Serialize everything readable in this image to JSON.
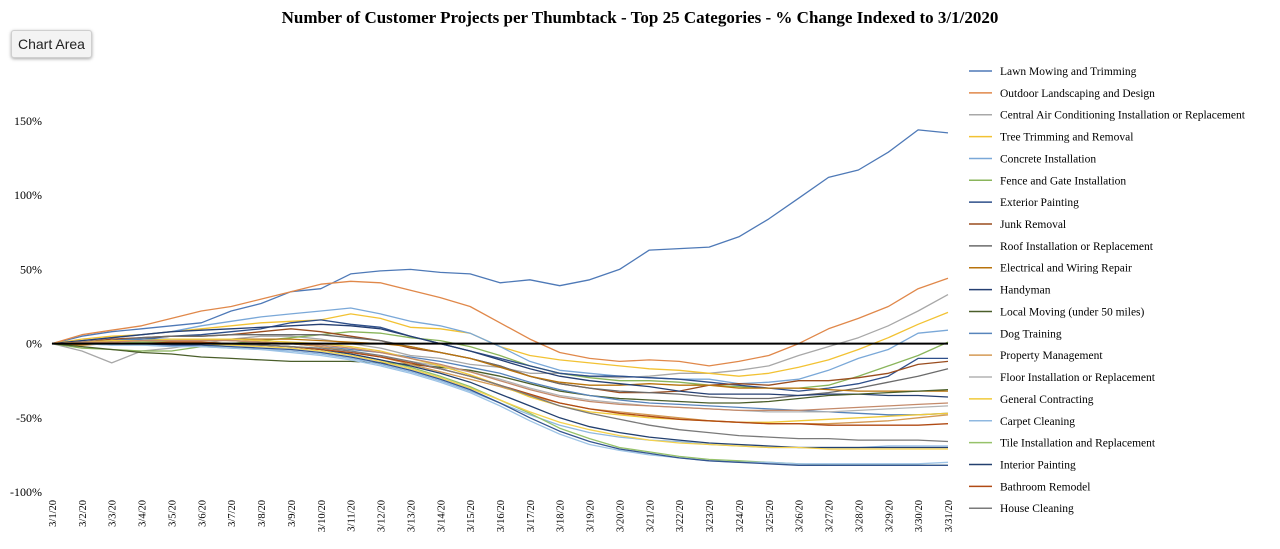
{
  "ui": {
    "chart_area_label": "Chart Area"
  },
  "chart_data": {
    "type": "line",
    "title": "Number of Customer Projects per Thumbtack - Top 25 Categories - % Change Indexed to 3/1/2020",
    "xlabel": "",
    "ylabel": "",
    "ylim": [
      -100,
      150
    ],
    "y_ticks": [
      "150%",
      "100%",
      "50%",
      "0%",
      "-50%",
      "-100%"
    ],
    "y_tick_values": [
      150,
      100,
      50,
      0,
      -50,
      -100
    ],
    "grid": false,
    "baseline_at_zero": true,
    "legend_position": "right",
    "categories": [
      "3/1/20",
      "3/2/20",
      "3/3/20",
      "3/4/20",
      "3/5/20",
      "3/6/20",
      "3/7/20",
      "3/8/20",
      "3/9/20",
      "3/10/20",
      "3/11/20",
      "3/12/20",
      "3/13/20",
      "3/14/20",
      "3/15/20",
      "3/16/20",
      "3/17/20",
      "3/18/20",
      "3/19/20",
      "3/20/20",
      "3/21/20",
      "3/22/20",
      "3/23/20",
      "3/24/20",
      "3/25/20",
      "3/26/20",
      "3/27/20",
      "3/28/20",
      "3/29/20",
      "3/30/20",
      "3/31/20"
    ],
    "series": [
      {
        "name": "Lawn Mowing and Trimming",
        "color": "#4e79b7",
        "values": [
          0,
          5,
          8,
          10,
          12,
          14,
          22,
          27,
          35,
          37,
          47,
          49,
          50,
          48,
          47,
          41,
          43,
          39,
          43,
          50,
          63,
          64,
          65,
          72,
          84,
          98,
          112,
          117,
          129,
          144,
          142
        ]
      },
      {
        "name": "Outdoor Landscaping and Design",
        "color": "#e0884a",
        "values": [
          0,
          6,
          9,
          12,
          17,
          22,
          25,
          30,
          35,
          40,
          42,
          41,
          36,
          31,
          25,
          14,
          3,
          -6,
          -10,
          -12,
          -11,
          -12,
          -15,
          -12,
          -8,
          0,
          10,
          17,
          25,
          37,
          44
        ]
      },
      {
        "name": "Central Air Conditioning Installation or Replacement",
        "color": "#a8a8a8",
        "values": [
          0,
          -5,
          -13,
          -5,
          -3,
          0,
          3,
          5,
          5,
          3,
          0,
          -3,
          -8,
          -10,
          -14,
          -16,
          -20,
          -20,
          -22,
          -23,
          -22,
          -20,
          -20,
          -18,
          -15,
          -8,
          -2,
          4,
          12,
          22,
          33
        ]
      },
      {
        "name": "Tree Trimming and Removal",
        "color": "#f2c233",
        "values": [
          0,
          3,
          5,
          6,
          8,
          10,
          12,
          14,
          15,
          16,
          20,
          17,
          11,
          10,
          7,
          -2,
          -8,
          -11,
          -13,
          -15,
          -17,
          -18,
          -20,
          -22,
          -20,
          -16,
          -11,
          -4,
          4,
          13,
          21
        ]
      },
      {
        "name": "Concrete Installation",
        "color": "#7aa8d8",
        "values": [
          0,
          2,
          4,
          6,
          8,
          12,
          15,
          18,
          20,
          22,
          24,
          20,
          15,
          12,
          7,
          -2,
          -12,
          -18,
          -20,
          -22,
          -23,
          -24,
          -24,
          -27,
          -26,
          -24,
          -18,
          -10,
          -4,
          7,
          9
        ]
      },
      {
        "name": "Fence and Gate Installation",
        "color": "#8ab55b",
        "values": [
          0,
          -3,
          -4,
          -5,
          -5,
          -2,
          0,
          2,
          4,
          6,
          8,
          7,
          4,
          2,
          -2,
          -8,
          -15,
          -20,
          -23,
          -25,
          -25,
          -26,
          -28,
          -29,
          -30,
          -30,
          -28,
          -22,
          -15,
          -8,
          1
        ]
      },
      {
        "name": "Exterior Painting",
        "color": "#2e4f8a",
        "values": [
          0,
          1,
          2,
          3,
          5,
          6,
          8,
          10,
          14,
          16,
          13,
          11,
          5,
          0,
          -5,
          -10,
          -15,
          -20,
          -22,
          -22,
          -23,
          -24,
          -26,
          -28,
          -30,
          -32,
          -30,
          -27,
          -22,
          -10,
          -10
        ]
      },
      {
        "name": "Junk Removal",
        "color": "#9a4d1f",
        "values": [
          0,
          1,
          3,
          4,
          5,
          5,
          6,
          8,
          10,
          8,
          5,
          2,
          -3,
          -6,
          -10,
          -15,
          -22,
          -27,
          -30,
          -33,
          -33,
          -32,
          -28,
          -27,
          -28,
          -25,
          -25,
          -23,
          -20,
          -14,
          -12
        ]
      },
      {
        "name": "Roof Installation or Replacement",
        "color": "#6b6b6b",
        "values": [
          0,
          1,
          2,
          4,
          5,
          5,
          6,
          6,
          6,
          6,
          4,
          2,
          -2,
          -6,
          -10,
          -15,
          -22,
          -27,
          -30,
          -32,
          -33,
          -34,
          -36,
          -37,
          -37,
          -35,
          -33,
          -30,
          -26,
          -22,
          -17
        ]
      },
      {
        "name": "Electrical and Wiring Repair",
        "color": "#b8730c",
        "values": [
          0,
          -1,
          0,
          1,
          2,
          2,
          3,
          3,
          3,
          2,
          1,
          0,
          -2,
          -6,
          -10,
          -16,
          -22,
          -26,
          -28,
          -28,
          -27,
          -28,
          -28,
          -30,
          -30,
          -30,
          -31,
          -32,
          -32,
          -32,
          -32
        ]
      },
      {
        "name": "Handyman",
        "color": "#253f72",
        "values": [
          0,
          2,
          4,
          6,
          8,
          9,
          10,
          11,
          12,
          13,
          12,
          10,
          5,
          0,
          -5,
          -11,
          -17,
          -22,
          -25,
          -27,
          -29,
          -32,
          -34,
          -34,
          -34,
          -35,
          -34,
          -34,
          -35,
          -35,
          -36
        ]
      },
      {
        "name": "Local Moving (under 50 miles)",
        "color": "#4a5e2a",
        "values": [
          0,
          -2,
          -4,
          -6,
          -7,
          -9,
          -10,
          -11,
          -12,
          -12,
          -12,
          -13,
          -14,
          -16,
          -18,
          -22,
          -27,
          -32,
          -35,
          -37,
          -38,
          -39,
          -40,
          -40,
          -39,
          -37,
          -35,
          -34,
          -33,
          -32,
          -31
        ]
      },
      {
        "name": "Dog Training",
        "color": "#5784bb",
        "values": [
          0,
          1,
          2,
          3,
          3,
          3,
          2,
          1,
          0,
          -2,
          -4,
          -6,
          -9,
          -12,
          -16,
          -20,
          -26,
          -31,
          -35,
          -38,
          -40,
          -41,
          -42,
          -43,
          -44,
          -45,
          -46,
          -47,
          -48,
          -48,
          -47
        ]
      },
      {
        "name": "Property Management",
        "color": "#d49a54",
        "values": [
          0,
          0,
          1,
          2,
          2,
          3,
          2,
          1,
          0,
          -2,
          -5,
          -9,
          -14,
          -19,
          -24,
          -29,
          -35,
          -40,
          -44,
          -46,
          -48,
          -50,
          -52,
          -53,
          -54,
          -54,
          -54,
          -53,
          -52,
          -50,
          -48
        ]
      },
      {
        "name": "Floor Installation or Replacement",
        "color": "#b3b3b3",
        "values": [
          0,
          0,
          0,
          1,
          1,
          1,
          0,
          -1,
          -2,
          -4,
          -6,
          -9,
          -12,
          -15,
          -19,
          -24,
          -30,
          -35,
          -38,
          -40,
          -42,
          -43,
          -44,
          -45,
          -46,
          -46,
          -46,
          -45,
          -44,
          -43,
          -42
        ]
      },
      {
        "name": "General Contracting",
        "color": "#f0c93a",
        "values": [
          0,
          1,
          2,
          2,
          3,
          3,
          3,
          2,
          1,
          0,
          -2,
          -5,
          -10,
          -15,
          -21,
          -28,
          -36,
          -42,
          -46,
          -48,
          -50,
          -51,
          -52,
          -53,
          -53,
          -52,
          -51,
          -50,
          -49,
          -48,
          -47
        ]
      },
      {
        "name": "Carpet Cleaning",
        "color": "#8fb8e0",
        "values": [
          0,
          0,
          -1,
          -1,
          -2,
          -2,
          -3,
          -4,
          -5,
          -7,
          -10,
          -14,
          -19,
          -25,
          -32,
          -40,
          -48,
          -55,
          -60,
          -63,
          -65,
          -66,
          -68,
          -69,
          -70,
          -70,
          -70,
          -70,
          -69,
          -69,
          -69
        ]
      },
      {
        "name": "Tile Installation and Replacement",
        "color": "#96c26a",
        "values": [
          0,
          0,
          0,
          1,
          1,
          1,
          0,
          -1,
          -2,
          -4,
          -7,
          -11,
          -16,
          -22,
          -29,
          -38,
          -47,
          -57,
          -64,
          -70,
          -73,
          -76,
          -78,
          -79,
          -80,
          -81,
          -82,
          -82,
          -82,
          -82,
          -82
        ]
      },
      {
        "name": "Interior Painting",
        "color": "#23406f",
        "values": [
          0,
          0,
          0,
          0,
          0,
          0,
          0,
          -1,
          -2,
          -4,
          -7,
          -11,
          -15,
          -20,
          -26,
          -34,
          -42,
          -50,
          -56,
          -60,
          -63,
          -65,
          -67,
          -68,
          -69,
          -70,
          -70,
          -70,
          -70,
          -70,
          -70
        ]
      },
      {
        "name": "Bathroom Remodel",
        "color": "#b04a14",
        "values": [
          0,
          0,
          0,
          0,
          1,
          1,
          0,
          -1,
          -2,
          -4,
          -6,
          -9,
          -13,
          -17,
          -22,
          -28,
          -34,
          -40,
          -44,
          -47,
          -49,
          -51,
          -52,
          -53,
          -54,
          -54,
          -55,
          -55,
          -55,
          -55,
          -54
        ]
      },
      {
        "name": "House Cleaning",
        "color": "#7a7a7a",
        "values": [
          0,
          0,
          0,
          0,
          0,
          0,
          -1,
          -1,
          -2,
          -3,
          -5,
          -8,
          -12,
          -17,
          -22,
          -28,
          -35,
          -42,
          -47,
          -51,
          -55,
          -58,
          -60,
          -62,
          -63,
          -64,
          -64,
          -65,
          -65,
          -65,
          -66
        ]
      },
      {
        "name": "",
        "color": "#9ec4e6",
        "values": [
          0,
          0,
          -1,
          -1,
          -1,
          -2,
          -3,
          -4,
          -6,
          -8,
          -11,
          -15,
          -20,
          -26,
          -33,
          -42,
          -52,
          -61,
          -68,
          -72,
          -75,
          -77,
          -79,
          -80,
          -80,
          -81,
          -81,
          -81,
          -81,
          -81,
          -80
        ]
      },
      {
        "name": "",
        "color": "#f5d24d",
        "values": [
          0,
          0,
          0,
          0,
          0,
          0,
          -1,
          -2,
          -3,
          -5,
          -8,
          -12,
          -17,
          -23,
          -30,
          -38,
          -46,
          -53,
          -58,
          -62,
          -65,
          -67,
          -68,
          -69,
          -70,
          -70,
          -71,
          -71,
          -71,
          -71,
          -71
        ]
      },
      {
        "name": "",
        "color": "#34558f",
        "values": [
          0,
          0,
          0,
          0,
          -1,
          -1,
          -2,
          -3,
          -4,
          -6,
          -9,
          -13,
          -18,
          -24,
          -31,
          -40,
          -50,
          -59,
          -66,
          -71,
          -74,
          -77,
          -79,
          -80,
          -81,
          -82,
          -82,
          -82,
          -82,
          -82,
          -82
        ]
      },
      {
        "name": "",
        "color": "#c48a6a",
        "values": [
          0,
          1,
          1,
          2,
          2,
          2,
          2,
          1,
          0,
          -1,
          -3,
          -6,
          -10,
          -14,
          -19,
          -25,
          -31,
          -36,
          -39,
          -41,
          -42,
          -43,
          -44,
          -45,
          -45,
          -45,
          -44,
          -43,
          -42,
          -41,
          -40
        ]
      }
    ]
  }
}
